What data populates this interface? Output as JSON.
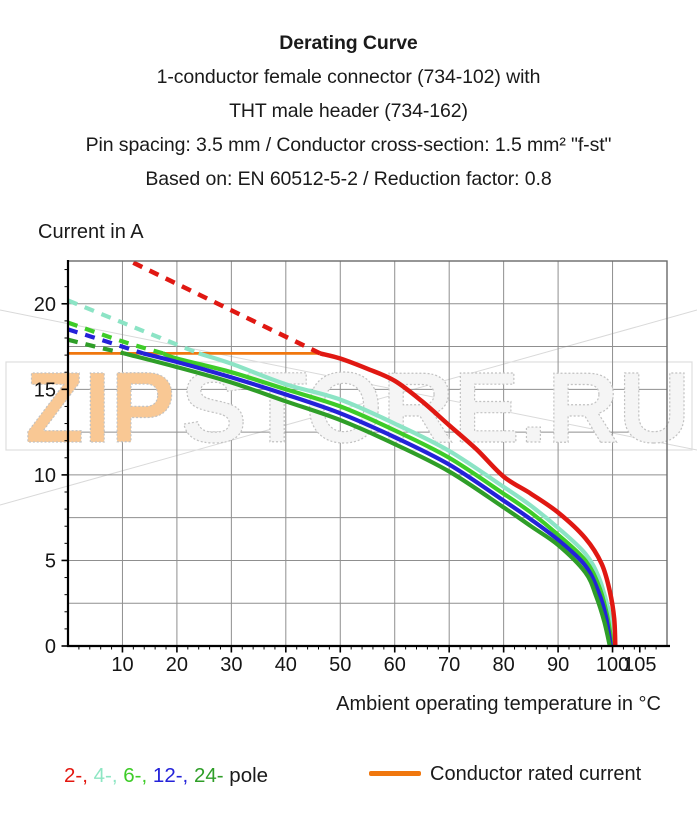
{
  "header": {
    "title": "Derating Curve",
    "subtitle_lines": [
      "1-conductor female connector (734-102) with",
      "THT male header (734-162)",
      "Pin spacing: 3.5 mm / Conductor cross-section: 1.5 mm² \"f-st\"",
      "Based on: EN 60512-5-2 / Reduction factor: 0.8"
    ]
  },
  "watermark": {
    "text_primary": "ZIP",
    "text_secondary": "STORE.RU",
    "primary_fill": "#f9c894",
    "secondary_fill": "#f5f5f5",
    "outline_color": "#c2c2c2",
    "box_color": "#dedede",
    "diagonal_color": "#d9d9d9"
  },
  "legend": {
    "poles": [
      {
        "label": "2-",
        "color": "#e3170f"
      },
      {
        "label": "4-",
        "color": "#8ee6c3"
      },
      {
        "label": "6-",
        "color": "#3ecc28"
      },
      {
        "label": "12-",
        "color": "#2422d9"
      },
      {
        "label": "24-",
        "color": "#2f9e28"
      }
    ],
    "poles_suffix": "pole",
    "rated_label": "Conductor rated current",
    "rated_color": "#f0770e"
  },
  "chart_data": {
    "type": "line",
    "title": "Derating Curve",
    "xlabel": "Ambient operating temperature in °C",
    "ylabel": "Current in A",
    "xlim": [
      0,
      110
    ],
    "ylim": [
      0,
      22.5
    ],
    "grid": {
      "x_step": 10,
      "y_step": 2.5,
      "color": "#8f8f8f"
    },
    "x_ticks": [
      10,
      20,
      30,
      40,
      50,
      60,
      70,
      80,
      90,
      100,
      105
    ],
    "x_minor_step": 2,
    "y_ticks": [
      0,
      5,
      10,
      15,
      20
    ],
    "y_minor_step": 1,
    "rated_line": {
      "label": "Conductor rated current",
      "value": 17.1,
      "t_start": 0,
      "t_end": 46.3,
      "color": "#f0770e"
    },
    "series": [
      {
        "name": "4-pole",
        "color": "#8ce4c5",
        "width": 4.2,
        "dashed_points": [
          [
            0,
            20.2
          ],
          [
            10,
            18.9
          ],
          [
            17,
            18.0
          ],
          [
            24,
            17.1
          ]
        ],
        "solid_points": [
          [
            24,
            17.1
          ],
          [
            30,
            16.5
          ],
          [
            40,
            15.3
          ],
          [
            50,
            14.4
          ],
          [
            60,
            13.0
          ],
          [
            70,
            11.4
          ],
          [
            80,
            9.3
          ],
          [
            85,
            8.2
          ],
          [
            90,
            6.9
          ],
          [
            95,
            5.4
          ],
          [
            97.5,
            4.0
          ],
          [
            99.2,
            2.2
          ],
          [
            100,
            0.9
          ],
          [
            100.2,
            0
          ]
        ]
      },
      {
        "name": "6-pole",
        "color": "#3ecc28",
        "width": 4.2,
        "dashed_points": [
          [
            0,
            18.9
          ],
          [
            10,
            17.8
          ],
          [
            17.5,
            17.1
          ]
        ],
        "solid_points": [
          [
            17.5,
            17.1
          ],
          [
            20,
            16.8
          ],
          [
            30,
            16.0
          ],
          [
            40,
            15.0
          ],
          [
            50,
            14.0
          ],
          [
            60,
            12.6
          ],
          [
            70,
            11.0
          ],
          [
            80,
            8.9
          ],
          [
            85,
            7.8
          ],
          [
            90,
            6.5
          ],
          [
            95,
            5.0
          ],
          [
            97.5,
            3.5
          ],
          [
            99,
            1.8
          ],
          [
            99.9,
            0
          ]
        ]
      },
      {
        "name": "12-pole",
        "color": "#2422d9",
        "width": 4.2,
        "dashed_points": [
          [
            0,
            18.5
          ],
          [
            7,
            17.8
          ],
          [
            13.8,
            17.1
          ]
        ],
        "solid_points": [
          [
            13.8,
            17.1
          ],
          [
            20,
            16.6
          ],
          [
            30,
            15.7
          ],
          [
            40,
            14.7
          ],
          [
            50,
            13.6
          ],
          [
            60,
            12.2
          ],
          [
            70,
            10.6
          ],
          [
            80,
            8.5
          ],
          [
            85,
            7.4
          ],
          [
            90,
            6.2
          ],
          [
            95,
            4.7
          ],
          [
            97.5,
            3.1
          ],
          [
            98.8,
            1.7
          ],
          [
            99.7,
            0
          ]
        ]
      },
      {
        "name": "24-pole",
        "color": "#2f9e28",
        "width": 4.2,
        "dashed_points": [
          [
            0,
            17.9
          ],
          [
            5,
            17.5
          ],
          [
            10.3,
            17.1
          ]
        ],
        "solid_points": [
          [
            10.3,
            17.1
          ],
          [
            20,
            16.3
          ],
          [
            30,
            15.4
          ],
          [
            40,
            14.3
          ],
          [
            50,
            13.2
          ],
          [
            60,
            11.8
          ],
          [
            70,
            10.2
          ],
          [
            80,
            8.1
          ],
          [
            85,
            7.0
          ],
          [
            90,
            5.9
          ],
          [
            95,
            4.3
          ],
          [
            97,
            2.9
          ],
          [
            98.5,
            1.4
          ],
          [
            99.5,
            0
          ]
        ]
      },
      {
        "name": "2-pole",
        "color": "#e01812",
        "width": 4.5,
        "dashed_points": [
          [
            12,
            22.4
          ],
          [
            46.3,
            17.1
          ]
        ],
        "solid_points": [
          [
            46.3,
            17.1
          ],
          [
            50,
            16.8
          ],
          [
            55,
            16.2
          ],
          [
            60,
            15.5
          ],
          [
            65,
            14.3
          ],
          [
            70,
            12.9
          ],
          [
            75,
            11.5
          ],
          [
            80,
            9.9
          ],
          [
            85,
            8.9
          ],
          [
            90,
            7.8
          ],
          [
            95,
            6.3
          ],
          [
            98,
            4.8
          ],
          [
            99.5,
            3.2
          ],
          [
            100.3,
            1.6
          ],
          [
            100.5,
            0
          ]
        ]
      }
    ]
  }
}
